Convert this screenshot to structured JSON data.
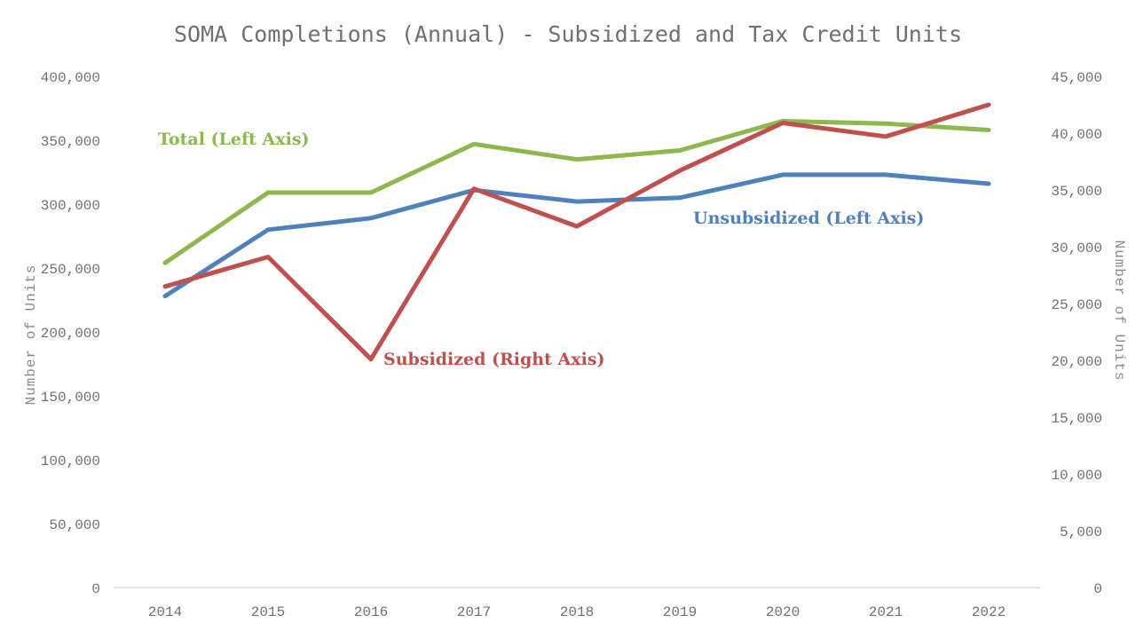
{
  "chart_data": {
    "type": "line",
    "title": "SOMA Completions (Annual) - Subsidized and Tax Credit Units",
    "x": [
      "2014",
      "2015",
      "2016",
      "2017",
      "2018",
      "2019",
      "2020",
      "2021",
      "2022"
    ],
    "ylabel_left": "Number of Units",
    "ylabel_right": "Number of Units",
    "ylim_left": [
      0,
      400000
    ],
    "ylim_right": [
      0,
      45000
    ],
    "yticks_left": [
      "0",
      "50,000",
      "100,000",
      "150,000",
      "200,000",
      "250,000",
      "300,000",
      "350,000",
      "400,000"
    ],
    "yticks_right": [
      "0",
      "5,000",
      "10,000",
      "15,000",
      "20,000",
      "25,000",
      "30,000",
      "35,000",
      "40,000",
      "45,000"
    ],
    "grid": false,
    "series": [
      {
        "name": "Total (Left Axis)",
        "axis": "left",
        "color": "#8cb84e",
        "values": [
          254000,
          309000,
          309000,
          347000,
          335000,
          342000,
          365000,
          363000,
          358000
        ]
      },
      {
        "name": "Unsubsidized (Left Axis)",
        "axis": "left",
        "color": "#4f81bd",
        "values": [
          228000,
          280000,
          289000,
          311000,
          302000,
          305000,
          323000,
          323000,
          316000
        ]
      },
      {
        "name": "Subsidized (Right Axis)",
        "axis": "right",
        "color": "#c0504d",
        "values": [
          26500,
          29100,
          20100,
          35100,
          31800,
          36700,
          40900,
          39700,
          42500
        ]
      }
    ]
  }
}
